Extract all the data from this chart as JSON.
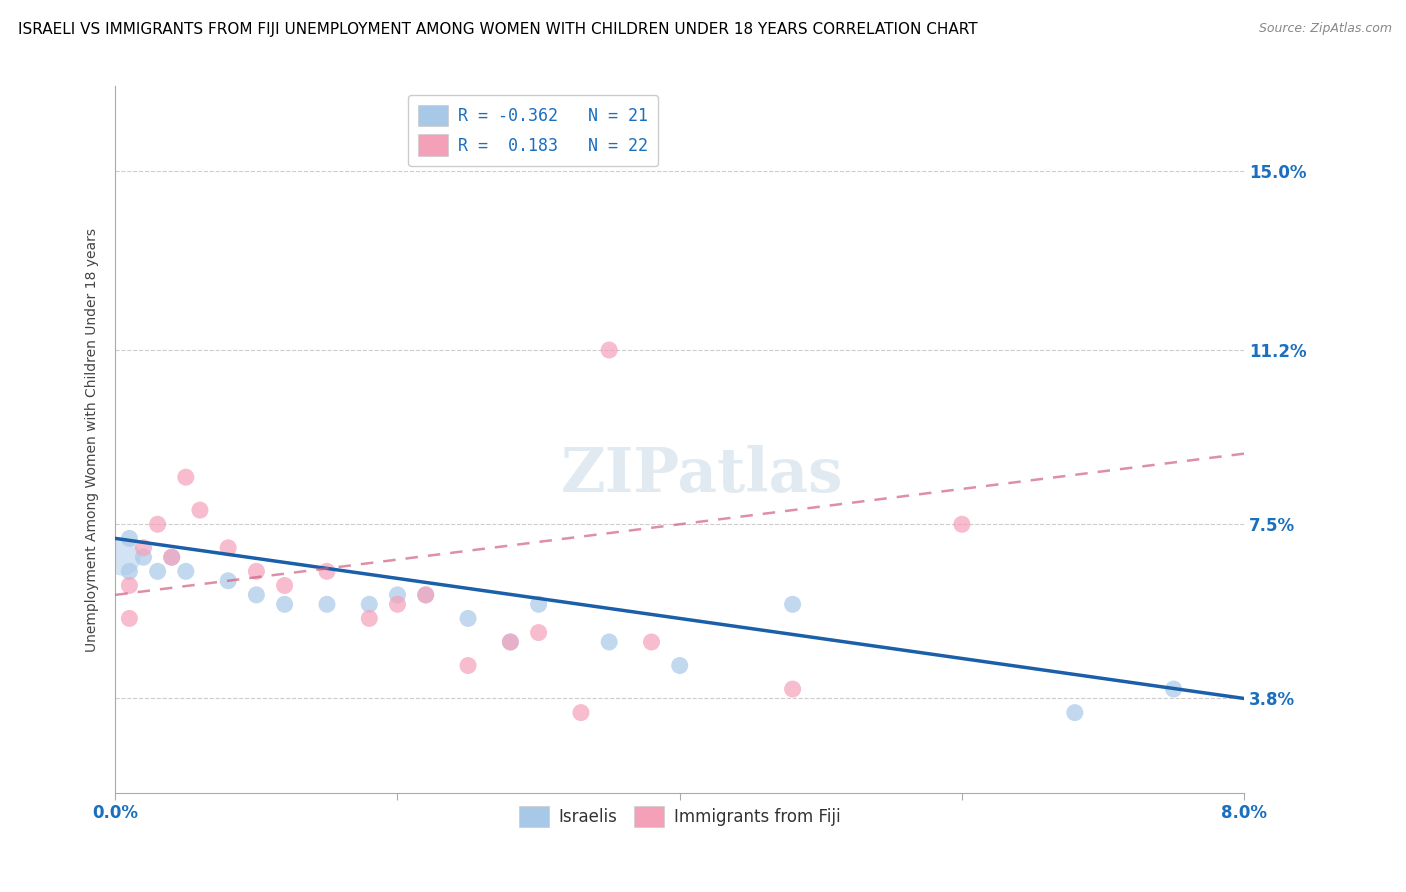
{
  "title": "ISRAELI VS IMMIGRANTS FROM FIJI UNEMPLOYMENT AMONG WOMEN WITH CHILDREN UNDER 18 YEARS CORRELATION CHART",
  "source": "Source: ZipAtlas.com",
  "ylabel": "Unemployment Among Women with Children Under 18 years",
  "xlim": [
    0.0,
    0.08
  ],
  "ylim": [
    0.018,
    0.168
  ],
  "yticks": [
    0.038,
    0.075,
    0.112,
    0.15
  ],
  "ytick_labels": [
    "3.8%",
    "7.5%",
    "11.2%",
    "15.0%"
  ],
  "xticks": [
    0.0,
    0.02,
    0.04,
    0.06,
    0.08
  ],
  "xtick_labels": [
    "0.0%",
    "",
    "",
    "",
    "8.0%"
  ],
  "legend_r1": "R = -0.362   N = 21",
  "legend_r2": "R =  0.183   N = 22",
  "color_blue": "#a8c8e8",
  "color_pink": "#f4a0b8",
  "color_blue_line": "#1a5fa8",
  "color_pink_line": "#d06080",
  "watermark": "ZIPatlas",
  "background_color": "#ffffff",
  "title_color": "#000000",
  "axis_color": "#1a6fbe",
  "grid_color": "#cccccc",
  "title_fontsize": 11,
  "israelis_x": [
    0.001,
    0.001,
    0.002,
    0.003,
    0.004,
    0.005,
    0.008,
    0.01,
    0.012,
    0.015,
    0.018,
    0.02,
    0.022,
    0.025,
    0.028,
    0.03,
    0.035,
    0.04,
    0.048,
    0.068,
    0.075
  ],
  "israelis_y": [
    0.072,
    0.065,
    0.068,
    0.065,
    0.068,
    0.065,
    0.063,
    0.06,
    0.058,
    0.058,
    0.058,
    0.06,
    0.06,
    0.055,
    0.05,
    0.058,
    0.05,
    0.045,
    0.058,
    0.035,
    0.04
  ],
  "fiji_x": [
    0.001,
    0.001,
    0.002,
    0.003,
    0.004,
    0.005,
    0.006,
    0.008,
    0.01,
    0.012,
    0.015,
    0.018,
    0.02,
    0.022,
    0.025,
    0.028,
    0.03,
    0.033,
    0.035,
    0.038,
    0.048,
    0.06
  ],
  "fiji_y": [
    0.062,
    0.055,
    0.07,
    0.075,
    0.068,
    0.085,
    0.078,
    0.07,
    0.065,
    0.062,
    0.065,
    0.055,
    0.058,
    0.06,
    0.045,
    0.05,
    0.052,
    0.035,
    0.112,
    0.05,
    0.04,
    0.075
  ],
  "blue_line_x0": 0.0,
  "blue_line_y0": 0.072,
  "blue_line_x1": 0.08,
  "blue_line_y1": 0.038,
  "pink_line_x0": 0.0,
  "pink_line_y0": 0.06,
  "pink_line_x1": 0.08,
  "pink_line_y1": 0.09
}
